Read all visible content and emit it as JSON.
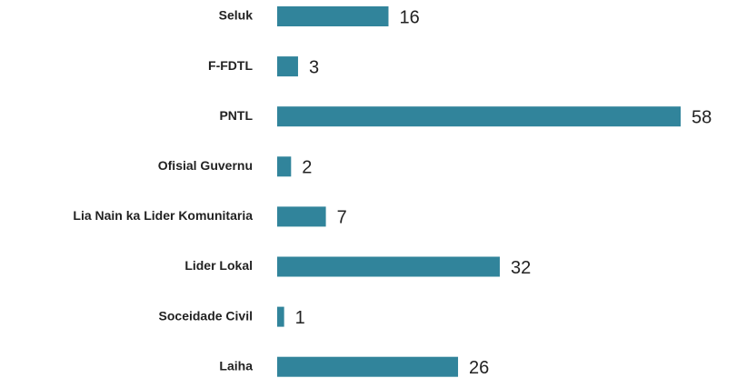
{
  "chart_data": {
    "type": "barh",
    "categories": [
      "Seluk",
      "F-FDTL",
      "PNTL",
      "Ofisial Guvernu",
      "Lia Nain ka Lider Komunitaria",
      "Lider Lokal",
      "Soceidade Civil",
      "Laiha"
    ],
    "values": [
      16,
      3,
      58,
      2,
      7,
      32,
      1,
      26
    ],
    "color": "#31849b"
  }
}
